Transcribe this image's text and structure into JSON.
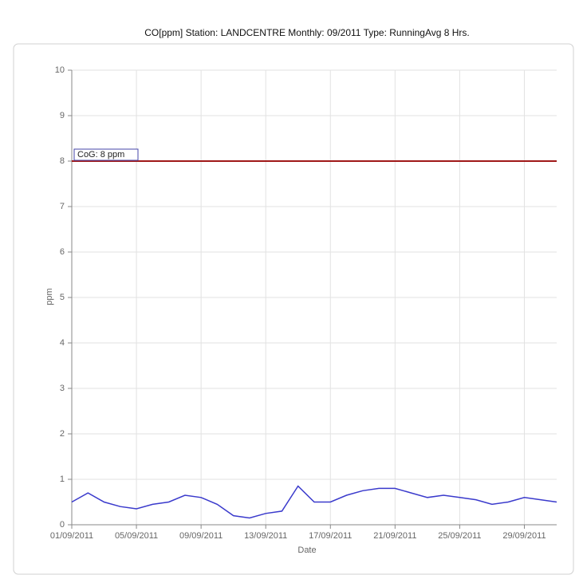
{
  "chart_data": {
    "type": "line",
    "title": "CO[ppm] Station: LANDCENTRE  Monthly: 09/2011  Type: RunningAvg 8 Hrs.",
    "x_label": "Date",
    "y_label": "ppm",
    "x": [
      "01/09/2011",
      "02/09/2011",
      "03/09/2011",
      "04/09/2011",
      "05/09/2011",
      "06/09/2011",
      "07/09/2011",
      "08/09/2011",
      "09/09/2011",
      "10/09/2011",
      "11/09/2011",
      "12/09/2011",
      "13/09/2011",
      "14/09/2011",
      "15/09/2011",
      "16/09/2011",
      "17/09/2011",
      "18/09/2011",
      "19/09/2011",
      "20/09/2011",
      "21/09/2011",
      "22/09/2011",
      "23/09/2011",
      "24/09/2011",
      "25/09/2011",
      "26/09/2011",
      "27/09/2011",
      "28/09/2011",
      "29/09/2011",
      "30/09/2011",
      "01/10/2011"
    ],
    "series": [
      {
        "name": "CO",
        "color": "#3a3acc",
        "values": [
          0.5,
          0.7,
          0.5,
          0.4,
          0.35,
          0.45,
          0.5,
          0.65,
          0.6,
          0.45,
          0.2,
          0.15,
          0.25,
          0.3,
          0.85,
          0.5,
          0.5,
          0.65,
          0.75,
          0.8,
          0.8,
          0.7,
          0.6,
          0.65,
          0.6,
          0.55,
          0.45,
          0.5,
          0.6,
          0.55,
          0.5
        ]
      }
    ],
    "threshold": {
      "value": 8,
      "label": "CoG: 8 ppm",
      "color": "#a01818"
    },
    "xlim": [
      "01/09/2011",
      "01/10/2011"
    ],
    "xticks": [
      "01/09/2011",
      "05/09/2011",
      "09/09/2011",
      "13/09/2011",
      "17/09/2011",
      "21/09/2011",
      "25/09/2011",
      "29/09/2011"
    ],
    "ylim": [
      0,
      10
    ],
    "yticks": [
      0,
      1,
      2,
      3,
      4,
      5,
      6,
      7,
      8,
      9,
      10
    ],
    "grid": true
  }
}
